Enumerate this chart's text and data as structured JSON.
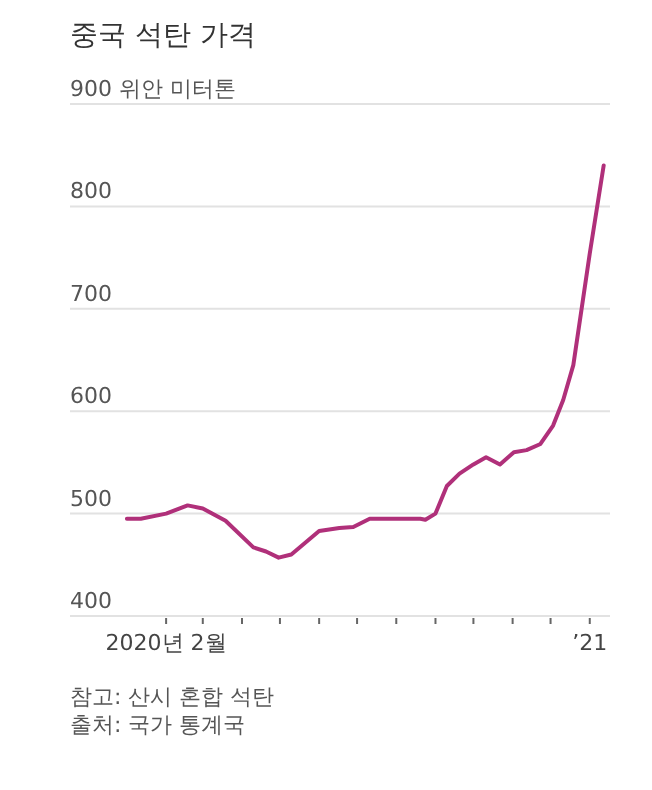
{
  "chart_data": {
    "type": "line",
    "title": "중국 석탄 가격",
    "x": [
      "2020-01-01",
      "2020-01-12",
      "2020-02-01",
      "2020-02-18",
      "2020-03-01",
      "2020-03-19",
      "2020-04-10",
      "2020-04-20",
      "2020-04-30",
      "2020-05-10",
      "2020-06-01",
      "2020-06-17",
      "2020-06-28",
      "2020-07-11",
      "2020-07-29",
      "2020-08-20",
      "2020-08-24",
      "2020-09-01",
      "2020-09-10",
      "2020-09-20",
      "2020-10-01",
      "2020-10-11",
      "2020-10-22",
      "2020-11-02",
      "2020-11-12",
      "2020-11-23",
      "2020-12-03",
      "2020-12-11",
      "2020-12-19",
      "2021-01-01",
      "2021-01-12"
    ],
    "values": [
      495,
      495,
      500,
      508,
      505,
      493,
      467,
      463,
      457,
      460,
      483,
      486,
      487,
      495,
      495,
      495,
      494,
      500,
      527,
      539,
      548,
      555,
      548,
      560,
      562,
      568,
      586,
      611,
      645,
      754,
      840
    ],
    "color": "#b0307a",
    "xlim": [
      "2019-11-17",
      "2021-01-17"
    ],
    "ylim": [
      400,
      900
    ],
    "xticks": [
      {
        "value": "2020-02-01",
        "label": "2020년 2월"
      },
      {
        "value": "2020-03-01",
        "label": null
      },
      {
        "value": "2020-04-01",
        "label": null
      },
      {
        "value": "2020-05-01",
        "label": null
      },
      {
        "value": "2020-06-01",
        "label": null
      },
      {
        "value": "2020-07-01",
        "label": null
      },
      {
        "value": "2020-08-01",
        "label": null
      },
      {
        "value": "2020-09-01",
        "label": null
      },
      {
        "value": "2020-10-01",
        "label": null
      },
      {
        "value": "2020-11-01",
        "label": null
      },
      {
        "value": "2020-12-01",
        "label": null
      },
      {
        "value": "2021-01-01",
        "label": "’21"
      }
    ],
    "yticks": [
      400,
      500,
      600,
      700,
      800,
      {
        "value": 900,
        "label": "900 위안 미터톤"
      }
    ],
    "grid": "y",
    "annotations": [
      "참고: 산시 혼합 석탄",
      "출처: 국가 통계국"
    ]
  }
}
